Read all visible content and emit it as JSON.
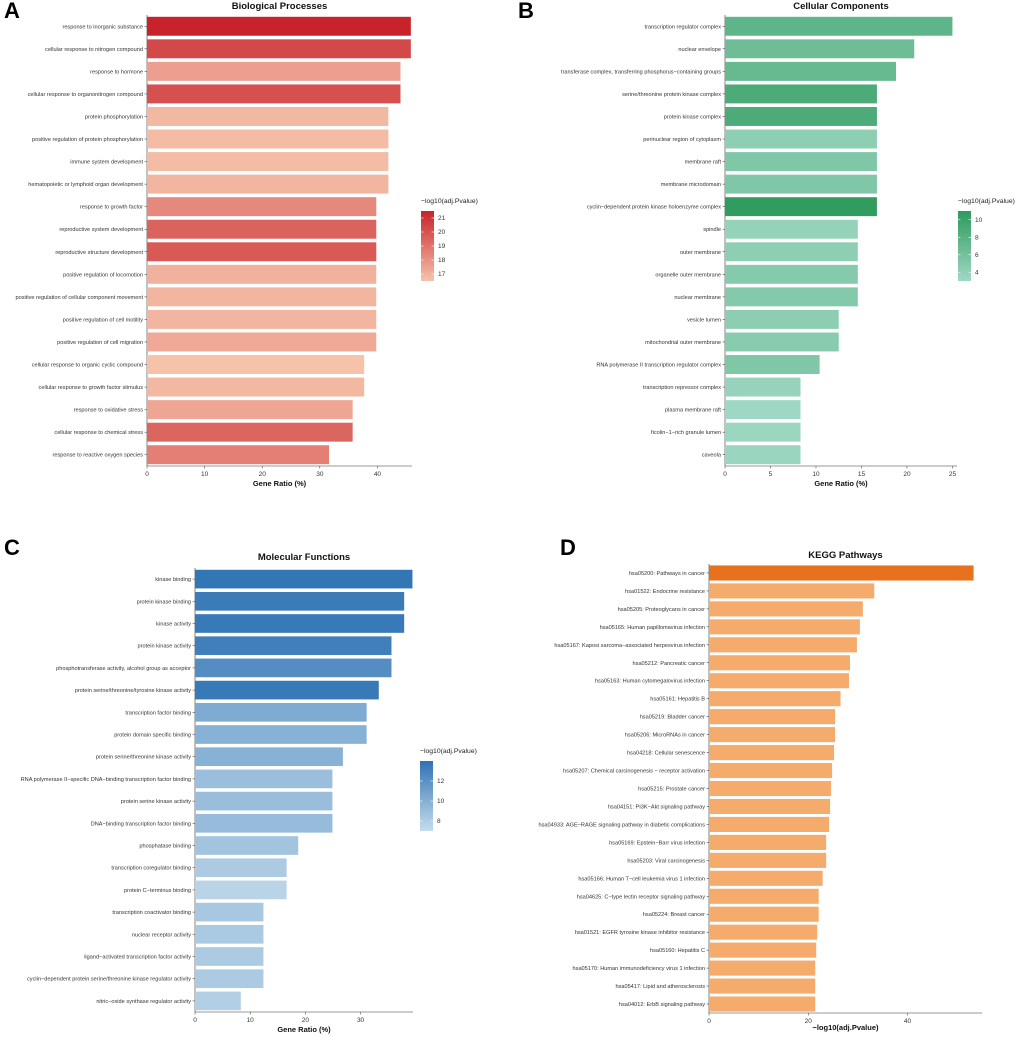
{
  "chart_data": [
    {
      "id": "A",
      "panel_letter": "A",
      "type": "bar",
      "orientation": "horizontal",
      "title": "Biological Processes",
      "xlabel": "Gene Ratio (%)",
      "ylabel": "",
      "xlim": [
        0,
        46
      ],
      "xticks": [
        0,
        10,
        20,
        30,
        40
      ],
      "categories": [
        "response to inorganic substance",
        "cellular response to nitrogen compound",
        "response to hormone",
        "cellular response to organonitrogen compound",
        "protein phosphorylation",
        "positive regulation of protein phosphorylation",
        "immune system development",
        "hematopoietic or lymphoid organ development",
        "response to growth factor",
        "reproductive system development",
        "reproductive structure development",
        "positive regulation of locomotion",
        "positive regulation of cellular component movement",
        "positive regulation of cell motility",
        "positive regulation of cell migration",
        "cellular response to organic cyclic compound",
        "cellular response to growth factor stimulus",
        "response to oxidative stress",
        "cellular response to chemical stress",
        "response to reactive oxygen species"
      ],
      "values": [
        45.8,
        45.8,
        44.0,
        44.0,
        41.9,
        41.9,
        41.9,
        41.9,
        39.8,
        39.8,
        39.8,
        39.8,
        39.8,
        39.8,
        39.8,
        37.7,
        37.7,
        35.7,
        35.7,
        31.6
      ],
      "color_values": [
        21.5,
        20.3,
        17.6,
        20.1,
        16.8,
        16.7,
        16.7,
        16.9,
        18.3,
        19.5,
        19.8,
        17.0,
        16.9,
        16.9,
        17.3,
        16.5,
        16.8,
        17.4,
        19.4,
        18.6
      ],
      "legend": {
        "title": "−log10(adj.Pvalue)",
        "ticks": [
          17,
          18,
          19,
          20,
          21
        ],
        "min": 16.5,
        "max": 21.5,
        "low_color": "#f6c2aa",
        "high_color": "#c8232b"
      }
    },
    {
      "id": "B",
      "panel_letter": "B",
      "type": "bar",
      "orientation": "horizontal",
      "title": "Cellular Components",
      "xlabel": "Gene Ratio (%)",
      "ylabel": "",
      "xlim": [
        0,
        25.5
      ],
      "xticks": [
        0,
        5,
        10,
        15,
        20,
        25
      ],
      "categories": [
        "transcription regulator complex",
        "nuclear envelope",
        "transferase complex, transferring phosphorus−containing groups",
        "serine/threonine protein kinase complex",
        "protein kinase complex",
        "perinuclear region of cytoplasm",
        "membrane raft",
        "membrane microdomain",
        "cyclin−dependent protein kinase holoenzyme complex",
        "spindle",
        "outer membrane",
        "organelle outer membrane",
        "nuclear membrane",
        "vesicle lumen",
        "mitochondrial outer membrane",
        "RNA polymerase II transcription regulator complex",
        "transcription repressor complex",
        "plasma membrane raft",
        "ficolin−1−rich granule lumen",
        "caveola"
      ],
      "values": [
        25.0,
        20.8,
        18.8,
        16.7,
        16.7,
        16.7,
        16.7,
        16.7,
        16.7,
        14.6,
        14.6,
        14.6,
        14.6,
        12.5,
        12.5,
        10.4,
        8.3,
        8.3,
        8.3,
        8.3
      ],
      "color_values": [
        7.5,
        6.5,
        7.0,
        8.8,
        8.8,
        4.2,
        5.2,
        5.2,
        10.8,
        3.8,
        4.2,
        4.8,
        5.0,
        4.3,
        4.6,
        5.2,
        3.6,
        3.1,
        3.3,
        3.4
      ],
      "legend": {
        "title": "−log10(adj.Pvalue)",
        "ticks": [
          4,
          6,
          8,
          10
        ],
        "min": 3,
        "max": 11,
        "low_color": "#9fd8c4",
        "high_color": "#2e9a5c"
      }
    },
    {
      "id": "C",
      "panel_letter": "C",
      "type": "bar",
      "orientation": "horizontal",
      "title": "Molecular Functions",
      "xlabel": "Gene Ratio (%)",
      "ylabel": "",
      "xlim": [
        0,
        39.5
      ],
      "xticks": [
        0,
        10,
        20,
        30
      ],
      "categories": [
        "kinase binding",
        "protein kinase binding",
        "kinase activity",
        "protein kinase activity",
        "phosphotransferase activity, alcohol group as acceptor",
        "protein serine/threonine/tyrosine kinase activity",
        "transcription factor binding",
        "protein domain specific binding",
        "protein serine/threonine kinase activity",
        "RNA polymerase II−specific DNA−binding transcription factor binding",
        "protein serine kinase activity",
        "DNA−binding transcription factor binding",
        "phosphatase binding",
        "transcription coregulator binding",
        "protein C−terminus binding",
        "transcription coactivator binding",
        "nuclear receptor activity",
        "ligand−activated transcription factor activity",
        "cyclin−dependent protein serine/threonine kinase regulator activity",
        "nitric−oxide synthase regulator activity"
      ],
      "values": [
        39.4,
        37.9,
        37.9,
        35.6,
        35.6,
        33.3,
        31.1,
        31.1,
        26.8,
        24.9,
        24.9,
        24.9,
        18.7,
        16.6,
        16.6,
        12.4,
        12.4,
        12.4,
        12.4,
        8.3
      ],
      "color_values": [
        13.8,
        13.5,
        13.6,
        13.2,
        12.3,
        13.6,
        10.3,
        9.9,
        9.9,
        9.0,
        9.1,
        9.2,
        8.6,
        8.2,
        7.6,
        8.4,
        8.3,
        8.2,
        8.2,
        7.9
      ],
      "legend": {
        "title": "−log10(adj.Pvalue)",
        "ticks": [
          8,
          10,
          12
        ],
        "min": 7,
        "max": 14,
        "low_color": "#c6dcec",
        "high_color": "#2f73b4"
      }
    },
    {
      "id": "D",
      "panel_letter": "D",
      "type": "bar",
      "orientation": "horizontal",
      "title": "KEGG Pathways",
      "xlabel": "−log10(adj.Pvalue)",
      "ylabel": "",
      "xlim": [
        0,
        55
      ],
      "xticks": [
        0,
        20,
        40
      ],
      "categories": [
        "hsa05200: Pathways in cancer",
        "hsa01522: Endocrine resistance",
        "hsa05205: Proteoglycans in cancer",
        "hsa05165: Human papillomavirus infection",
        "hsa05167: Kaposi sarcoma−associated herpesvirus infection",
        "hsa05212: Pancreatic cancer",
        "hsa05163: Human cytomegalovirus infection",
        "hsa05161: Hepatitis B",
        "hsa05219: Bladder cancer",
        "hsa05206: MicroRNAs in cancer",
        "hsa04218: Cellular senescence",
        "hsa05207: Chemical carcinogenesis − receptor activation",
        "hsa05215: Prostate cancer",
        "hsa04151: PI3K−Akt signaling pathway",
        "hsa04933: AGE−RAGE signaling pathway in diabetic complications",
        "hsa05169: Epstein−Barr virus infection",
        "hsa05203: Viral carcinogenesis",
        "hsa05166: Human T−cell leukemia virus 1 infection",
        "hsa04625: C−type lectin receptor signaling pathway",
        "hsa05224: Breast cancer",
        "hsa01521: EGFR tyrosine kinase inhibitor resistance",
        "hsa05160: Hepatitis C",
        "hsa05170: Human immunodeficiency virus 1 infection",
        "hsa05417: Lipid and atherosclerosis",
        "hsa04012: ErbB signaling pathway"
      ],
      "values": [
        53.3,
        33.3,
        31.0,
        30.4,
        29.8,
        28.4,
        28.2,
        26.5,
        25.4,
        25.4,
        25.2,
        24.8,
        24.6,
        24.4,
        24.2,
        23.6,
        23.6,
        22.9,
        22.1,
        22.1,
        21.8,
        21.6,
        21.4,
        21.4,
        21.4
      ],
      "bar_color": "#f4ab6c",
      "top_bar_color": "#e8711e"
    }
  ]
}
